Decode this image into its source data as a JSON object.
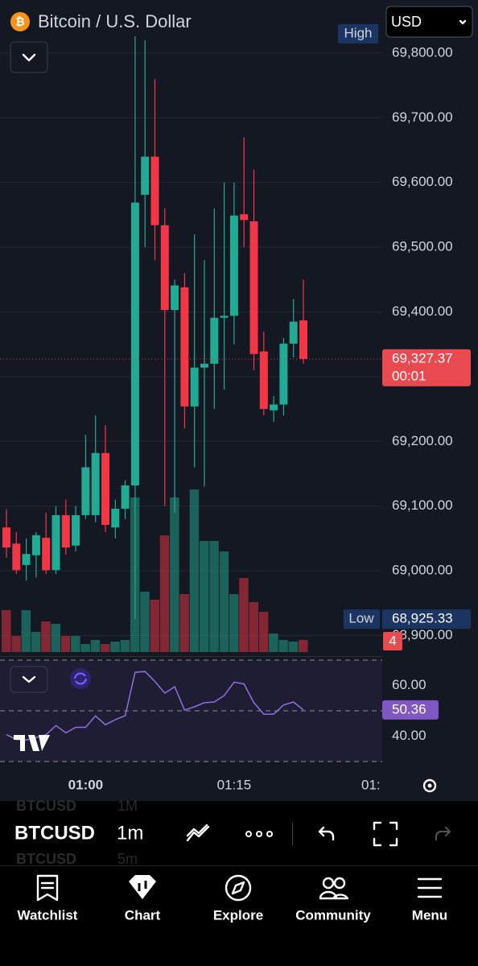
{
  "header": {
    "title": "Bitcoin / U.S. Dollar",
    "currency": "USD"
  },
  "chart_data": {
    "type": "candlestick",
    "categories": [
      null,
      null,
      null,
      null,
      null,
      null,
      null,
      null,
      "01:00",
      null,
      null,
      null,
      null,
      null,
      null,
      null,
      null,
      null,
      null,
      null,
      null,
      null,
      null,
      "01:15",
      null,
      null,
      null,
      null,
      null,
      null,
      null
    ],
    "open": [
      69067,
      69042,
      69009,
      69024,
      69051,
      69001,
      69086,
      69039,
      69086,
      69086,
      69182,
      69067,
      69096,
      69132,
      69581,
      69640,
      69534,
      69403,
      69438,
      69254,
      69314,
      69320,
      69391,
      69394,
      69551,
      69540,
      69339,
      69248,
      69257,
      69351,
      69387
    ],
    "high": [
      69095,
      69060,
      69050,
      69060,
      69090,
      69100,
      69110,
      69100,
      69210,
      69240,
      69225,
      69110,
      69140,
      69826,
      69820,
      69760,
      69560,
      69450,
      69460,
      69520,
      69480,
      69560,
      69600,
      69600,
      69670,
      69620,
      69370,
      69270,
      69360,
      69420,
      69450
    ],
    "low": [
      69020,
      68995,
      68985,
      68990,
      68995,
      68995,
      69025,
      69030,
      69080,
      69075,
      69060,
      69050,
      69080,
      68925.33,
      69500,
      69480,
      69100,
      69090,
      69220,
      69160,
      69130,
      69250,
      69280,
      69350,
      69500,
      69310,
      69240,
      69230,
      69240,
      69330,
      69320
    ],
    "close": [
      69036,
      69001,
      69026,
      69055,
      69001,
      69086,
      69036,
      69086,
      69160,
      69182,
      69071,
      69096,
      69132,
      69569,
      69640,
      69534,
      69403,
      69441,
      69254,
      69314,
      69320,
      69391,
      69394,
      69549,
      69542,
      69335,
      69250,
      69257,
      69351,
      69385,
      69327.37
    ],
    "volume": [
      52,
      20,
      52,
      25,
      38,
      35,
      20,
      20,
      10,
      15,
      10,
      13,
      15,
      192,
      75,
      65,
      145,
      192,
      72,
      202,
      138,
      138,
      125,
      72,
      92,
      62,
      50,
      23,
      15,
      13,
      15
    ],
    "up_color": "#22ab94",
    "down_color": "#f23645",
    "ylim": [
      68872,
      69882
    ],
    "yticks": [
      {
        "value": 68900,
        "label": "68,900.00"
      },
      {
        "value": 69000,
        "label": "69,000.00"
      },
      {
        "value": 69100,
        "label": "69,100.00"
      },
      {
        "value": 69200,
        "label": "69,200.00"
      },
      {
        "value": 69300,
        "label": "69,300.00"
      },
      {
        "value": 69400,
        "label": "69,400.00"
      },
      {
        "value": 69500,
        "label": "69,500.00"
      },
      {
        "value": 69600,
        "label": "69,600.00"
      },
      {
        "value": 69700,
        "label": "69,700.00"
      },
      {
        "value": 69800,
        "label": "69,800.00"
      }
    ],
    "grid": true,
    "last_price": {
      "value": 69327.37,
      "label": "69,327.37"
    },
    "countdown": "00:01",
    "high_label": "High",
    "low_label": "Low",
    "low_price": {
      "value": 68925.33,
      "label": "68,925.33"
    },
    "current_volume": 4,
    "x_overflow_label": "01:"
  },
  "rsi": {
    "type": "line",
    "color": "#8e6fe0",
    "values": [
      40.6,
      38.7,
      38.5,
      39.5,
      40.6,
      44.2,
      41.3,
      43.5,
      43.5,
      48,
      44.5,
      46.5,
      48.1,
      65.2,
      65.5,
      61.6,
      57,
      59.5,
      50.3,
      51.6,
      53.2,
      53.5,
      56,
      61.3,
      60.6,
      53.2,
      48.7,
      48.7,
      52.3,
      53.5,
      50.36
    ],
    "ylim": [
      30,
      70
    ],
    "yticks": [
      {
        "value": 60,
        "label": "60.00"
      },
      {
        "value": 40,
        "label": "40.00"
      }
    ],
    "bands": [
      70,
      50,
      30
    ]
  },
  "toolbar": {
    "symbol": "BTCUSD",
    "interval": "1m",
    "ghost_above": [
      "BTCUSD",
      "1M"
    ],
    "ghost_below": [
      "BTCUSD",
      "5m"
    ]
  },
  "nav": [
    "Watchlist",
    "Chart",
    "Explore",
    "Community",
    "Menu"
  ]
}
